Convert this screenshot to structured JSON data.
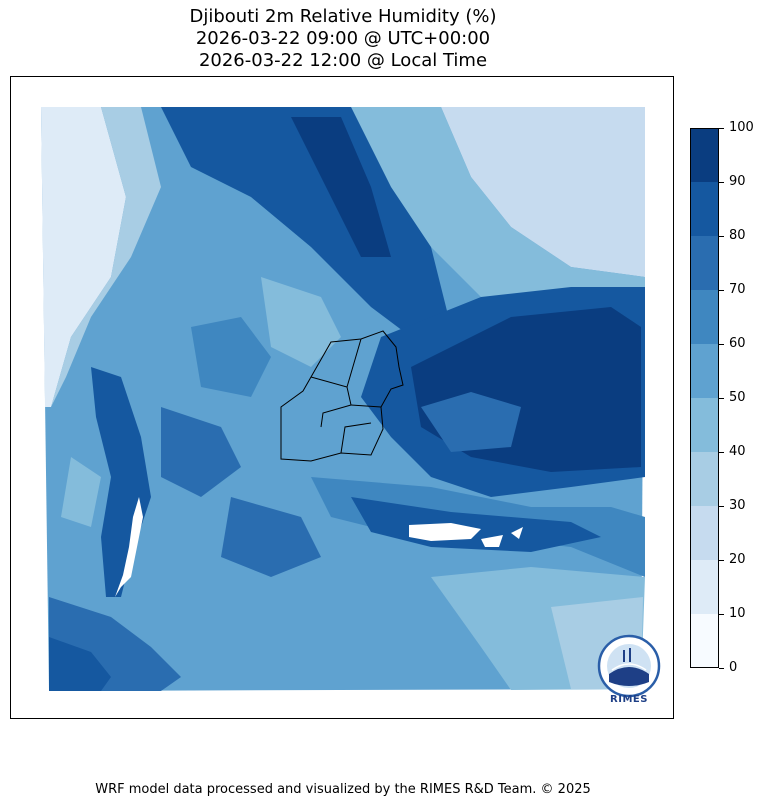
{
  "title": {
    "line1": "Djibouti 2m Relative Humidity (%)",
    "line2": "2026-03-22 09:00 @ UTC+00:00",
    "line3": "2026-03-22 12:00 @ Local Time"
  },
  "colorbar": {
    "levels": [
      "0",
      "10",
      "20",
      "30",
      "40",
      "50",
      "60",
      "70",
      "80",
      "90",
      "100"
    ],
    "colors": [
      "#f7fbff",
      "#deebf7",
      "#c6dbef",
      "#a8cde4",
      "#84bcdb",
      "#5fa2d0",
      "#3f87c0",
      "#2a6db0",
      "#1558a0",
      "#0a3d80"
    ]
  },
  "footer": "WRF model data processed and visualized by the RIMES R&D Team. © 2025",
  "logo": {
    "text": "RIMES",
    "icon": "rimes-logo-icon"
  }
}
